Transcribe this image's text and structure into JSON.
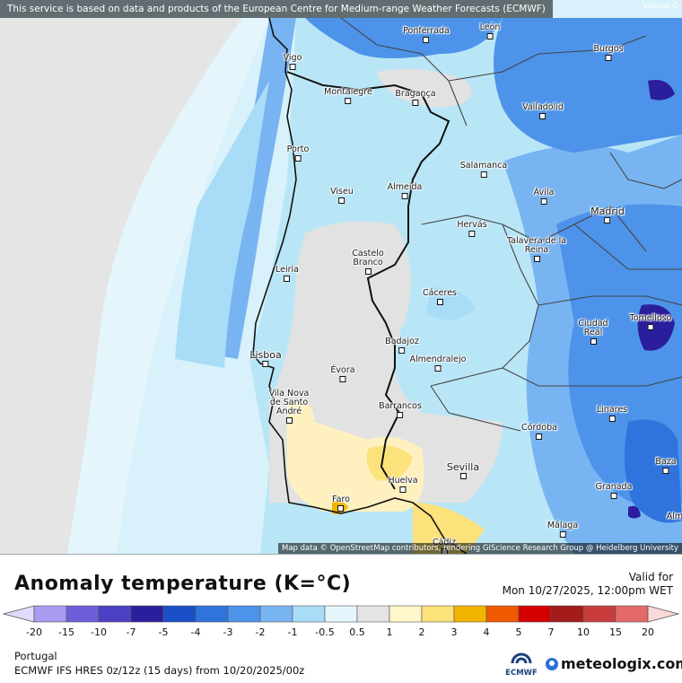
{
  "map": {
    "disclaimer": "This service is based on data and products of the European Centre for Medium-range Weather Forecasts (ECMWF)",
    "corner_city": "Vitoria-G",
    "attribution": "Map data © OpenStreetMap contributors, rendering GIScience Research Group @ Heidelberg University",
    "cities": [
      {
        "name": "Ponferrada"
      },
      {
        "name": "León"
      },
      {
        "name": "Burgos"
      },
      {
        "name": "Vigo"
      },
      {
        "name": "Montalegre"
      },
      {
        "name": "Bragança"
      },
      {
        "name": "Valladolid"
      },
      {
        "name": "Porto"
      },
      {
        "name": "Salamanca"
      },
      {
        "name": "Viseu"
      },
      {
        "name": "Almeida"
      },
      {
        "name": "Ávila"
      },
      {
        "name": "Madrid"
      },
      {
        "name": "Hervás"
      },
      {
        "name": "Talavera de la Reina"
      },
      {
        "name": "Castelo Branco"
      },
      {
        "name": "Leiria"
      },
      {
        "name": "Cáceres"
      },
      {
        "name": "Ciudad Real"
      },
      {
        "name": "Tomelloso"
      },
      {
        "name": "Badajoz"
      },
      {
        "name": "Lisboa"
      },
      {
        "name": "Almendralejo"
      },
      {
        "name": "Évora"
      },
      {
        "name": "Vila Nova de Santo André"
      },
      {
        "name": "Barrancos"
      },
      {
        "name": "Linares"
      },
      {
        "name": "Córdoba"
      },
      {
        "name": "Sevilla"
      },
      {
        "name": "Baza"
      },
      {
        "name": "Huelva"
      },
      {
        "name": "Granada"
      },
      {
        "name": "Faro"
      },
      {
        "name": "Málaga"
      },
      {
        "name": "Cádiz"
      },
      {
        "name": "Alm"
      }
    ]
  },
  "legend": {
    "title": "Anomaly temperature (K=°C)",
    "valid_label": "Valid for",
    "valid_date": "Mon 10/27/2025, 12:00pm WET",
    "region": "Portugal",
    "model": "ECMWF IFS HRES 0z/12z (15 days) from 10/20/2025/00z",
    "ecmwf_text": "ECMWF",
    "brand": "meteologix.com",
    "ticks": [
      "-20",
      "-15",
      "-10",
      "-7",
      "-5",
      "-4",
      "-3",
      "-2",
      "-1",
      "-0.5",
      "0.5",
      "1",
      "2",
      "3",
      "4",
      "5",
      "7",
      "10",
      "15",
      "20"
    ],
    "colors": [
      "#e0dcff",
      "#a79cf2",
      "#6c5fd9",
      "#4b3fc4",
      "#2a1e9c",
      "#1b4fc8",
      "#2f74dc",
      "#4d93ea",
      "#79b4f2",
      "#a9dcf7",
      "#e3f6fb",
      "#e4e4e4",
      "#fff6c9",
      "#fbe27a",
      "#f3b400",
      "#ef5a00",
      "#d40000",
      "#a31b1b",
      "#c93c3c",
      "#e46a6a",
      "#f4a2a2",
      "#fbd8d8"
    ]
  }
}
